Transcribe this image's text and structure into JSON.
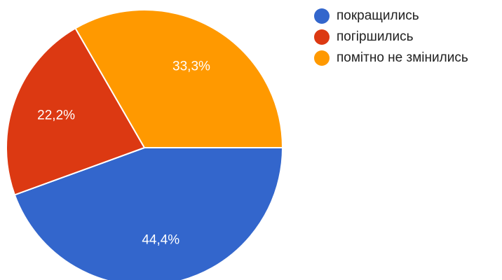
{
  "chart_data": {
    "type": "pie",
    "categories": [
      "покращились",
      "погіршились",
      "помітно не змінились"
    ],
    "values": [
      44.4,
      22.2,
      33.3
    ],
    "labels": [
      "44,4%",
      "22,2%",
      "33,3%"
    ],
    "colors": [
      "#3366cc",
      "#dc3912",
      "#ff9900"
    ],
    "legend_position": "right",
    "title": ""
  }
}
